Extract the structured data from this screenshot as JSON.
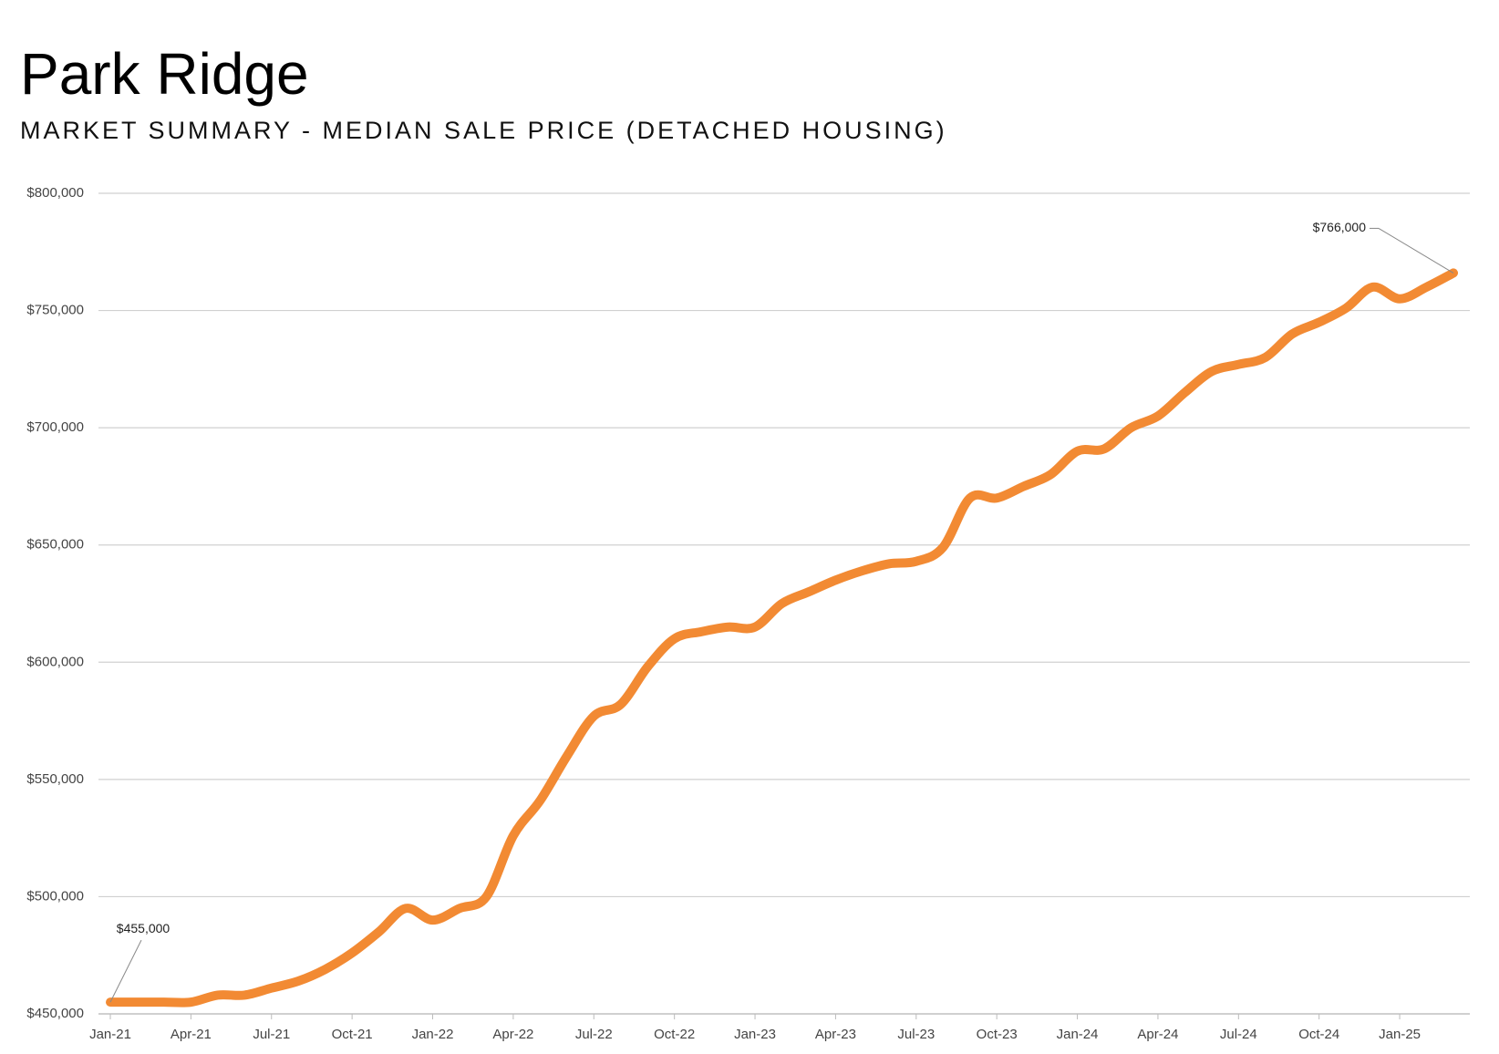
{
  "chart_data": {
    "type": "line",
    "title": "Park Ridge",
    "subtitle": "MARKET SUMMARY - MEDIAN SALE PRICE (DETACHED HOUSING)",
    "categories": [
      "Jan-21",
      null,
      null,
      "Apr-21",
      null,
      null,
      "Jul-21",
      null,
      null,
      "Oct-21",
      null,
      null,
      "Jan-22",
      null,
      null,
      "Apr-22",
      null,
      null,
      "Jul-22",
      null,
      null,
      "Oct-22",
      null,
      null,
      "Jan-23",
      null,
      null,
      "Apr-23",
      null,
      null,
      "Jul-23",
      null,
      null,
      "Oct-23",
      null,
      null,
      "Jan-24",
      null,
      null,
      "Apr-24",
      null,
      null,
      "Jul-24",
      null,
      null,
      "Oct-24",
      null,
      null,
      "Jan-25",
      null,
      null
    ],
    "series": [
      {
        "name": "Median Sale Price",
        "color": "#f28a33",
        "values": [
          455000,
          455000,
          455000,
          455000,
          458000,
          458000,
          461000,
          464000,
          469000,
          476000,
          485000,
          495000,
          490000,
          495000,
          500000,
          526000,
          541000,
          560000,
          577000,
          582000,
          598000,
          610000,
          613000,
          615000,
          615000,
          625000,
          630000,
          635000,
          639000,
          642000,
          643000,
          649000,
          670000,
          670000,
          675000,
          680000,
          690000,
          691000,
          700000,
          705000,
          715000,
          724000,
          727000,
          730000,
          740000,
          745000,
          751000,
          760000,
          755000,
          760000,
          766000
        ],
        "value_labels": [
          "$455,000",
          null,
          null,
          null,
          null,
          null,
          null,
          null,
          null,
          null,
          null,
          null,
          null,
          null,
          null,
          null,
          null,
          null,
          null,
          null,
          null,
          null,
          null,
          null,
          null,
          null,
          null,
          null,
          null,
          null,
          null,
          null,
          null,
          null,
          null,
          null,
          null,
          null,
          null,
          null,
          null,
          null,
          null,
          null,
          null,
          null,
          null,
          null,
          null,
          null,
          "$766,000"
        ]
      }
    ],
    "ylim": [
      450000,
      800000
    ],
    "yticks": [
      {
        "value": 450000,
        "label": "$450,000"
      },
      {
        "value": 500000,
        "label": "$500,000"
      },
      {
        "value": 550000,
        "label": "$550,000"
      },
      {
        "value": 600000,
        "label": "$600,000"
      },
      {
        "value": 650000,
        "label": "$650,000"
      },
      {
        "value": 700000,
        "label": "$700,000"
      },
      {
        "value": 750000,
        "label": "$750,000"
      },
      {
        "value": 800000,
        "label": "$800,000"
      }
    ],
    "grid": true
  }
}
